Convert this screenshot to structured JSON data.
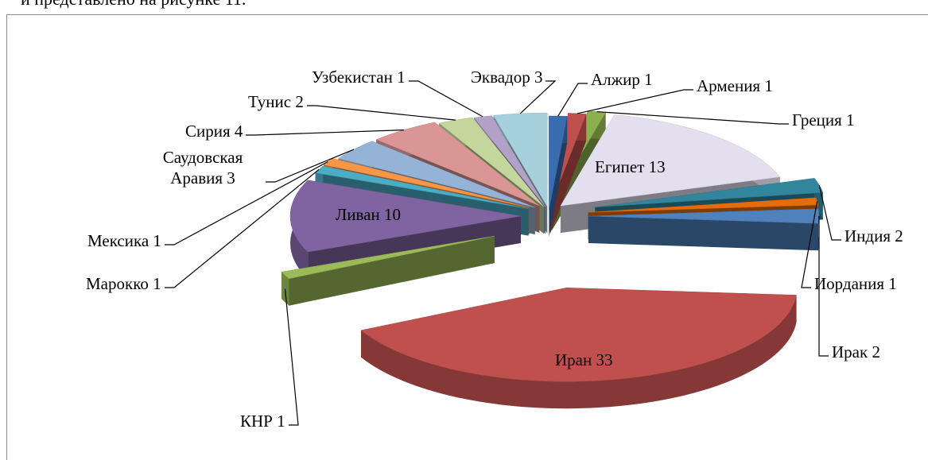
{
  "text_above": "и представлено на рисунке 11.",
  "chart_data": {
    "type": "pie",
    "categories": [
      "Алжир",
      "Армения",
      "Греция",
      "Египет",
      "Индия",
      "Иордания",
      "Ирак",
      "Иран",
      "КНР",
      "Ливан",
      "Марокко",
      "Мексика",
      "Саудовская Аравия",
      "Сирия",
      "Тунис",
      "Узбекистан",
      "Эквадор"
    ],
    "values": [
      1,
      1,
      1,
      13,
      2,
      1,
      2,
      33,
      1,
      10,
      1,
      1,
      3,
      4,
      2,
      1,
      3
    ],
    "colors": [
      "#3a6db0",
      "#c0504d",
      "#8db04f",
      "#e3dfee",
      "#31859c",
      "#e46c0a",
      "#4f81bd",
      "#c0504d",
      "#9bbb59",
      "#8064a2",
      "#4bacc6",
      "#f79646",
      "#95b3d7",
      "#d99694",
      "#c3d69b",
      "#b3a2c7",
      "#a5d0dc"
    ]
  }
}
